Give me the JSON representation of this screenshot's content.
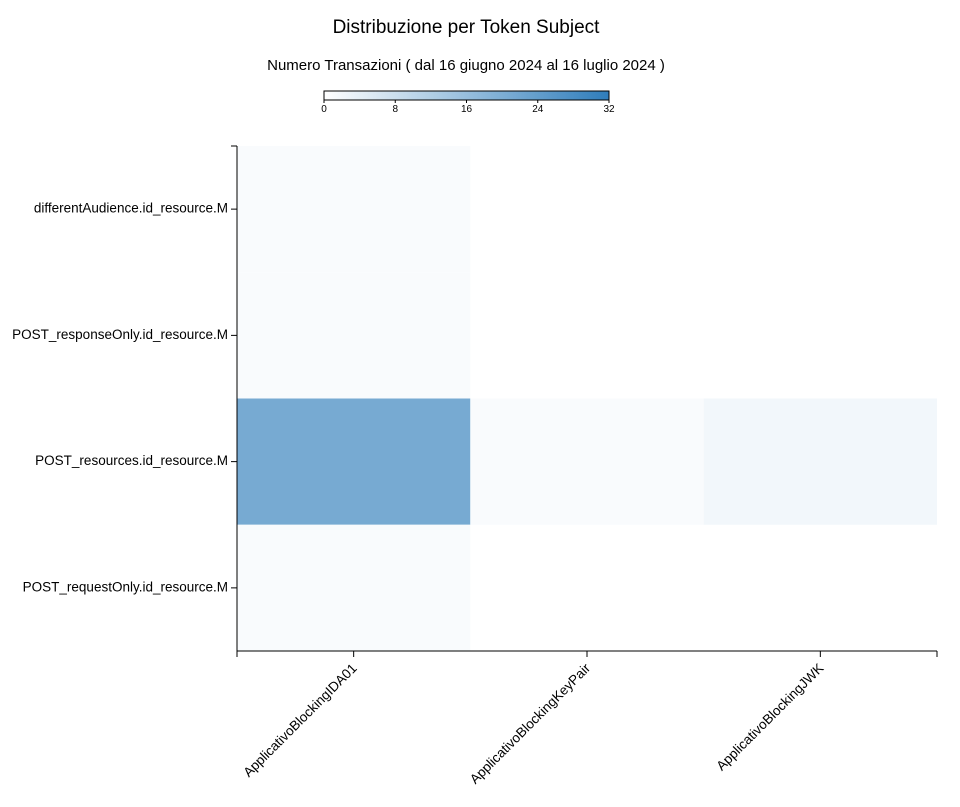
{
  "chart_data": {
    "type": "heatmap",
    "title": "Distribuzione per Token Subject",
    "subtitle": "Numero Transazioni ( dal 16 giugno 2024 al 16 luglio 2024 )",
    "x_categories": [
      "ApplicativoBlockingIDA01",
      "ApplicativoBlockingKeyPair",
      "ApplicativoBlockingJWK"
    ],
    "y_categories": [
      "differentAudience.id_resource.M",
      "POST_responseOnly.id_resource.M",
      "POST_resources.id_resource.M",
      "POST_requestOnly.id_resource.M"
    ],
    "values": [
      [
        1,
        0,
        0
      ],
      [
        1,
        0,
        0
      ],
      [
        21,
        1,
        2
      ],
      [
        1,
        0,
        0
      ]
    ],
    "colorscale": {
      "min": 0,
      "max": 32,
      "ticks": [
        0,
        8,
        16,
        24,
        32
      ],
      "low_color": "#ffffff",
      "high_color": "#2f7dbb"
    },
    "legend_placement": "top-center",
    "grid": false
  }
}
